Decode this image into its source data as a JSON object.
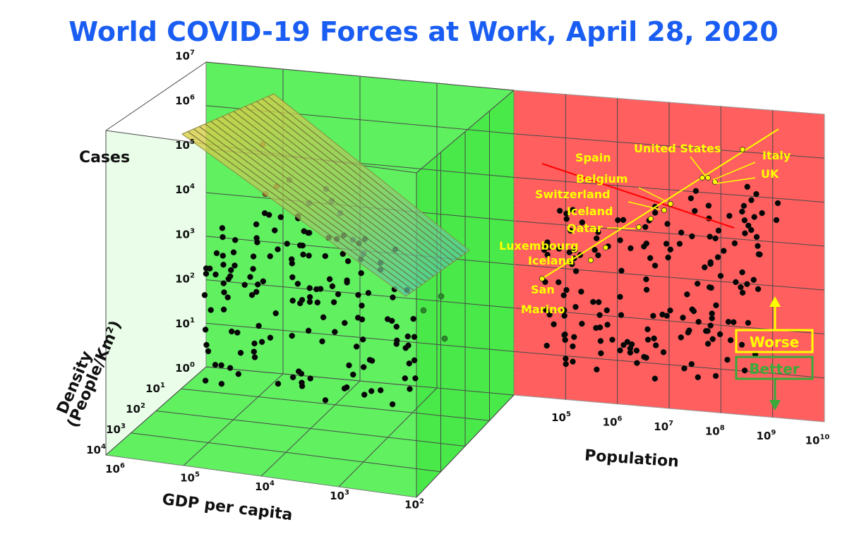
{
  "title": "World COVID-19 Forces at Work, April 28, 2020",
  "chart_data": {
    "type": "scatter",
    "title": "World COVID-19 Forces at Work, April 28, 2020",
    "axes": {
      "cases": {
        "label": "Cases",
        "scale": "log",
        "ticks": [
          "10^0",
          "10^1",
          "10^2",
          "10^3",
          "10^4",
          "10^5",
          "10^6",
          "10^7"
        ]
      },
      "density": {
        "label_line1": "Density",
        "label_line2": "(People/Km²)",
        "scale": "log",
        "ticks": [
          "10^1",
          "10^2",
          "10^3",
          "10^4"
        ]
      },
      "gdp": {
        "label": "GDP per capita",
        "scale": "log",
        "reversed": true,
        "ticks": [
          "10^6",
          "10^5",
          "10^4",
          "10^3",
          "10^2"
        ]
      },
      "population": {
        "label": "Population",
        "scale": "log",
        "ticks": [
          "10^5",
          "10^6",
          "10^7",
          "10^8",
          "10^9",
          "10^10"
        ]
      }
    },
    "annotations": [
      {
        "label": "United States",
        "population": 330000000.0,
        "cases": 1000000.0
      },
      {
        "label": "Italy",
        "population": 60000000.0,
        "cases": 200000.0
      },
      {
        "label": "Spain",
        "population": 47000000.0,
        "cases": 230000.0
      },
      {
        "label": "UK",
        "population": 67000000.0,
        "cases": 160000.0
      },
      {
        "label": "Belgium",
        "population": 11500000.0,
        "cases": 47000.0
      },
      {
        "label": "Switzerland",
        "population": 8600000.0,
        "cases": 29000.0
      },
      {
        "label": "Iceland",
        "population": 360000.0,
        "cases": 1800.0
      },
      {
        "label": "Qatar",
        "population": 2800000.0,
        "cases": 12000.0
      },
      {
        "label": "Luxembourg",
        "population": 620000.0,
        "cases": 3700.0
      },
      {
        "label": "Iceland",
        "population": 360000.0,
        "cases": 1800.0
      },
      {
        "label": "San Marino",
        "population": 34000.0,
        "cases": 540.0
      }
    ],
    "label_order": [
      "United States",
      "Italy",
      "Spain",
      "UK",
      "Belgium",
      "Switzerland",
      "Iceland",
      "Qatar",
      "Luxembourg",
      "Iceland",
      "San Marino"
    ],
    "legend": {
      "worse": "Worse",
      "better": "Better",
      "placement": "right"
    },
    "grid": true
  }
}
